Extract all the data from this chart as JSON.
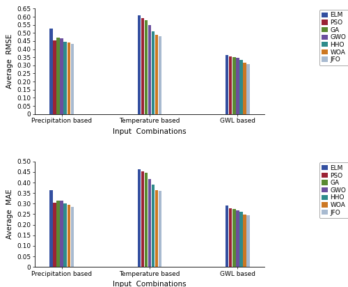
{
  "rmse": {
    "Precipitation based": [
      0.525,
      0.455,
      0.47,
      0.465,
      0.445,
      0.44,
      0.432
    ],
    "Temperature based": [
      0.61,
      0.59,
      0.578,
      0.55,
      0.508,
      0.488,
      0.48
    ],
    "GWL based": [
      0.365,
      0.355,
      0.35,
      0.345,
      0.333,
      0.315,
      0.308
    ]
  },
  "mae": {
    "Precipitation based": [
      0.365,
      0.305,
      0.315,
      0.315,
      0.3,
      0.293,
      0.283
    ],
    "Temperature based": [
      0.463,
      0.452,
      0.447,
      0.418,
      0.39,
      0.365,
      0.36
    ],
    "GWL based": [
      0.29,
      0.277,
      0.275,
      0.268,
      0.26,
      0.248,
      0.244
    ]
  },
  "models": [
    "ELM",
    "PSO",
    "GA",
    "GWO",
    "HHO",
    "WOA",
    "JFO"
  ],
  "colors": [
    "#334FA0",
    "#9B2335",
    "#5A8A32",
    "#6B4F9E",
    "#2E8B8B",
    "#CC7722",
    "#A8BAD0"
  ],
  "groups": [
    "Precipitation based",
    "Temperature based",
    "GWL based"
  ],
  "rmse_ylim": [
    0,
    0.65
  ],
  "mae_ylim": [
    0,
    0.5
  ],
  "rmse_yticks": [
    0,
    0.05,
    0.1,
    0.15,
    0.2,
    0.25,
    0.3,
    0.35,
    0.4,
    0.45,
    0.5,
    0.55,
    0.6,
    0.65
  ],
  "mae_yticks": [
    0,
    0.05,
    0.1,
    0.15,
    0.2,
    0.25,
    0.3,
    0.35,
    0.4,
    0.45,
    0.5
  ],
  "xlabel": "Input  Combinations",
  "rmse_ylabel": "Average  RMSE",
  "mae_ylabel": "Average  MAE",
  "bar_width": 0.055,
  "group_centers": [
    1.0,
    2.5,
    4.0
  ],
  "legend_fontsize": 6.5,
  "tick_fontsize": 6.5,
  "label_fontsize": 7.5
}
